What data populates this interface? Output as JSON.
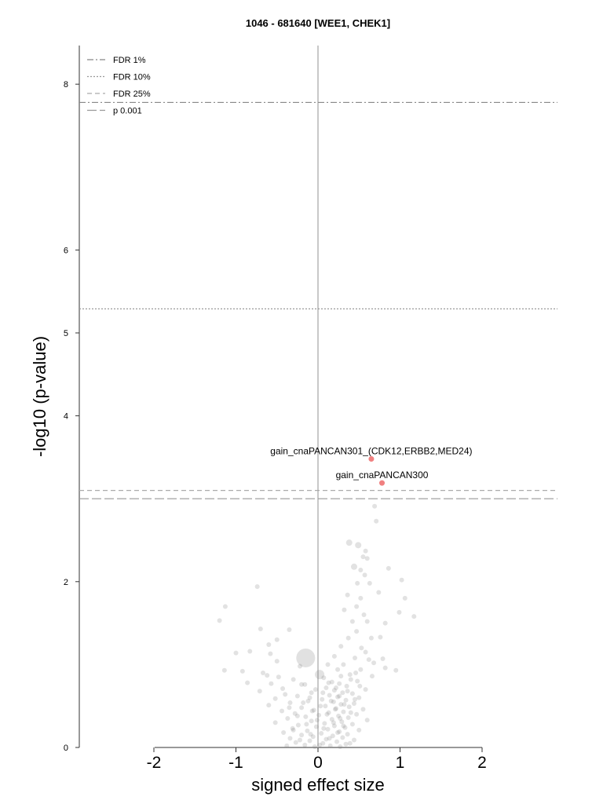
{
  "chart_data": {
    "type": "scatter",
    "title": "1046 - 681640 [WEE1, CHEK1]",
    "xlabel": "signed effect size",
    "ylabel": "-log10 (p-value)",
    "xlim": [
      -2.9,
      2.9
    ],
    "ylim": [
      0,
      8.6
    ],
    "x_ticks": [
      -2,
      -1,
      0,
      1,
      2
    ],
    "x_tick_labels": [
      "-2",
      "-1",
      "0",
      "1",
      "2"
    ],
    "y_ticks": [
      0,
      2,
      4,
      5,
      6,
      8
    ],
    "y_tick_labels": [
      "0",
      "2",
      "4",
      "5",
      "6",
      "8"
    ],
    "legend_position": "top-left",
    "thresholds": [
      {
        "name": "FDR 1%",
        "y": 7.78,
        "style": "dashdot"
      },
      {
        "name": "FDR 10%",
        "y": 5.29,
        "style": "dotted"
      },
      {
        "name": "FDR 25%",
        "y": 3.1,
        "style": "dashed"
      },
      {
        "name": "p 0.001",
        "y": 3.0,
        "style": "longdash"
      }
    ],
    "highlighted": [
      {
        "label": "gain_cnaPANCAN301_(CDK12,ERBB2,MED24)",
        "x": 0.65,
        "y": 3.48,
        "color": "#f08080"
      },
      {
        "label": "gain_cnaPANCAN300",
        "x": 0.78,
        "y": 3.19,
        "color": "#f08080"
      }
    ],
    "background_points": [
      [
        -0.15,
        1.08,
        12
      ],
      [
        0.02,
        0.88,
        6
      ],
      [
        0.69,
        2.91,
        3
      ],
      [
        0.71,
        2.73,
        3
      ],
      [
        0.38,
        2.47,
        4
      ],
      [
        0.49,
        2.44,
        4
      ],
      [
        0.55,
        2.3,
        3
      ],
      [
        0.58,
        2.37,
        3
      ],
      [
        0.6,
        2.28,
        3
      ],
      [
        0.44,
        2.18,
        4
      ],
      [
        0.52,
        2.14,
        3
      ],
      [
        0.86,
        2.16,
        3
      ],
      [
        0.57,
        2.08,
        3
      ],
      [
        1.02,
        2.02,
        3
      ],
      [
        0.48,
        1.98,
        3
      ],
      [
        0.63,
        1.98,
        3
      ],
      [
        0.36,
        1.84,
        3
      ],
      [
        0.74,
        1.87,
        3
      ],
      [
        0.52,
        1.8,
        3
      ],
      [
        -0.74,
        1.94,
        3
      ],
      [
        1.06,
        1.8,
        3
      ],
      [
        0.32,
        1.66,
        3
      ],
      [
        0.47,
        1.7,
        3
      ],
      [
        0.99,
        1.63,
        3
      ],
      [
        -1.13,
        1.7,
        3
      ],
      [
        0.56,
        1.6,
        3
      ],
      [
        1.17,
        1.58,
        3
      ],
      [
        -1.2,
        1.53,
        3
      ],
      [
        0.82,
        1.5,
        3
      ],
      [
        0.42,
        1.52,
        3
      ],
      [
        0.6,
        1.52,
        3
      ],
      [
        -0.7,
        1.43,
        3
      ],
      [
        -0.35,
        1.42,
        3
      ],
      [
        0.47,
        1.4,
        3
      ],
      [
        -0.5,
        1.3,
        3
      ],
      [
        0.76,
        1.33,
        3
      ],
      [
        0.37,
        1.32,
        3
      ],
      [
        0.65,
        1.32,
        3
      ],
      [
        0.28,
        1.22,
        3
      ],
      [
        -0.6,
        1.24,
        3
      ],
      [
        0.53,
        1.2,
        3
      ],
      [
        -0.83,
        1.16,
        3
      ],
      [
        -1.0,
        1.14,
        3
      ],
      [
        -0.58,
        1.13,
        3
      ],
      [
        0.58,
        1.15,
        3
      ],
      [
        0.2,
        1.1,
        3
      ],
      [
        0.45,
        1.08,
        3
      ],
      [
        0.62,
        1.06,
        3
      ],
      [
        0.79,
        1.07,
        3
      ],
      [
        0.68,
        1.02,
        3
      ],
      [
        -0.5,
        1.04,
        3
      ],
      [
        0.12,
        1.0,
        3
      ],
      [
        0.31,
        1.0,
        3
      ],
      [
        0.82,
        0.96,
        3
      ],
      [
        -0.22,
        0.98,
        3
      ],
      [
        -1.14,
        0.93,
        3
      ],
      [
        -0.92,
        0.92,
        3
      ],
      [
        -0.67,
        0.9,
        3
      ],
      [
        0.52,
        0.94,
        3
      ],
      [
        0.95,
        0.93,
        3
      ],
      [
        0.24,
        0.94,
        3
      ],
      [
        -0.48,
        0.85,
        3
      ],
      [
        -0.62,
        0.87,
        3
      ],
      [
        0.39,
        0.88,
        3
      ],
      [
        0.07,
        0.84,
        3
      ],
      [
        0.66,
        0.86,
        3
      ],
      [
        -0.3,
        0.82,
        3
      ],
      [
        -0.86,
        0.78,
        3
      ],
      [
        0.17,
        0.79,
        3
      ],
      [
        0.48,
        0.8,
        3
      ],
      [
        0.26,
        0.77,
        3
      ],
      [
        -0.57,
        0.77,
        3
      ],
      [
        -0.16,
        0.76,
        3
      ],
      [
        0.35,
        0.74,
        3
      ],
      [
        0.1,
        0.72,
        3
      ],
      [
        -0.43,
        0.71,
        3
      ],
      [
        0.58,
        0.7,
        3
      ],
      [
        0.2,
        0.69,
        3
      ],
      [
        -0.71,
        0.68,
        3
      ],
      [
        0.3,
        0.66,
        3
      ],
      [
        -0.08,
        0.66,
        3
      ],
      [
        0.42,
        0.65,
        3
      ],
      [
        0.14,
        0.63,
        3
      ],
      [
        -0.25,
        0.62,
        3
      ],
      [
        0.24,
        0.61,
        3
      ],
      [
        0.5,
        0.6,
        3
      ],
      [
        -0.52,
        0.59,
        3
      ],
      [
        0.05,
        0.58,
        3
      ],
      [
        0.34,
        0.57,
        3
      ],
      [
        -0.12,
        0.56,
        3
      ],
      [
        0.19,
        0.55,
        3
      ],
      [
        -0.34,
        0.54,
        3
      ],
      [
        0.44,
        0.53,
        3
      ],
      [
        0.28,
        0.52,
        3
      ],
      [
        -0.6,
        0.51,
        3
      ],
      [
        0.09,
        0.5,
        3
      ],
      [
        0.38,
        0.49,
        3
      ],
      [
        -0.2,
        0.48,
        3
      ],
      [
        0.22,
        0.47,
        3
      ],
      [
        0.55,
        0.46,
        3
      ],
      [
        -0.05,
        0.45,
        3
      ],
      [
        -0.44,
        0.44,
        3
      ],
      [
        0.31,
        0.43,
        3
      ],
      [
        0.13,
        0.42,
        3
      ],
      [
        -0.28,
        0.41,
        3
      ],
      [
        0.47,
        0.4,
        3
      ],
      [
        0.01,
        0.39,
        3
      ],
      [
        0.25,
        0.38,
        3
      ],
      [
        -0.15,
        0.37,
        3
      ],
      [
        0.37,
        0.36,
        3
      ],
      [
        -0.37,
        0.35,
        3
      ],
      [
        0.17,
        0.34,
        3
      ],
      [
        0.6,
        0.33,
        3
      ],
      [
        -0.08,
        0.32,
        3
      ],
      [
        0.29,
        0.31,
        3
      ],
      [
        -0.52,
        0.3,
        3
      ],
      [
        0.08,
        0.29,
        3
      ],
      [
        0.42,
        0.28,
        3
      ],
      [
        -0.24,
        0.27,
        3
      ],
      [
        0.2,
        0.26,
        3
      ],
      [
        -0.02,
        0.25,
        3
      ],
      [
        0.33,
        0.24,
        3
      ],
      [
        -0.31,
        0.23,
        3
      ],
      [
        0.12,
        0.22,
        3
      ],
      [
        0.5,
        0.21,
        3
      ],
      [
        -0.13,
        0.2,
        3
      ],
      [
        0.26,
        0.19,
        3
      ],
      [
        -0.42,
        0.18,
        3
      ],
      [
        0.04,
        0.17,
        3
      ],
      [
        0.36,
        0.16,
        3
      ],
      [
        -0.2,
        0.15,
        3
      ],
      [
        0.18,
        0.14,
        3
      ],
      [
        -0.06,
        0.13,
        3
      ],
      [
        0.3,
        0.12,
        3
      ],
      [
        -0.34,
        0.11,
        3
      ],
      [
        0.1,
        0.1,
        3
      ],
      [
        0.44,
        0.09,
        3
      ],
      [
        -0.1,
        0.08,
        3
      ],
      [
        0.23,
        0.07,
        3
      ],
      [
        -0.27,
        0.06,
        3
      ],
      [
        0.06,
        0.05,
        3
      ],
      [
        0.34,
        0.04,
        3
      ],
      [
        -0.16,
        0.03,
        3
      ],
      [
        0.15,
        0.02,
        3
      ],
      [
        -0.04,
        0.01,
        3
      ],
      [
        0.27,
        0.01,
        3
      ],
      [
        -0.38,
        0.02,
        3
      ],
      [
        0.02,
        0.03,
        3
      ],
      [
        0.39,
        0.05,
        3
      ],
      [
        -0.22,
        0.09,
        3
      ],
      [
        0.14,
        0.11,
        3
      ],
      [
        -0.09,
        0.16,
        3
      ],
      [
        0.24,
        0.18,
        3
      ],
      [
        -0.3,
        0.21,
        3
      ],
      [
        0.07,
        0.23,
        3
      ],
      [
        0.31,
        0.26,
        3
      ],
      [
        -0.14,
        0.28,
        3
      ],
      [
        0.19,
        0.3,
        3
      ],
      [
        -0.01,
        0.33,
        3
      ],
      [
        0.27,
        0.35,
        3
      ],
      [
        -0.25,
        0.38,
        3
      ],
      [
        0.11,
        0.4,
        3
      ],
      [
        0.4,
        0.42,
        3
      ],
      [
        -0.07,
        0.44,
        3
      ],
      [
        0.21,
        0.46,
        3
      ],
      [
        -0.35,
        0.48,
        3
      ],
      [
        0.03,
        0.5,
        3
      ],
      [
        0.32,
        0.52,
        3
      ],
      [
        -0.18,
        0.54,
        3
      ],
      [
        0.16,
        0.56,
        3
      ],
      [
        0.45,
        0.58,
        3
      ],
      [
        -0.1,
        0.6,
        3
      ],
      [
        0.26,
        0.62,
        3
      ],
      [
        -0.4,
        0.64,
        3
      ],
      [
        0.06,
        0.66,
        3
      ],
      [
        0.36,
        0.68,
        3
      ],
      [
        -0.03,
        0.7,
        3
      ],
      [
        0.22,
        0.72,
        3
      ],
      [
        0.51,
        0.74,
        3
      ],
      [
        -0.2,
        0.76,
        3
      ],
      [
        0.13,
        0.78,
        3
      ],
      [
        0.4,
        0.82,
        3
      ],
      [
        0.28,
        0.86,
        3
      ],
      [
        0.46,
        0.9,
        3
      ]
    ]
  }
}
